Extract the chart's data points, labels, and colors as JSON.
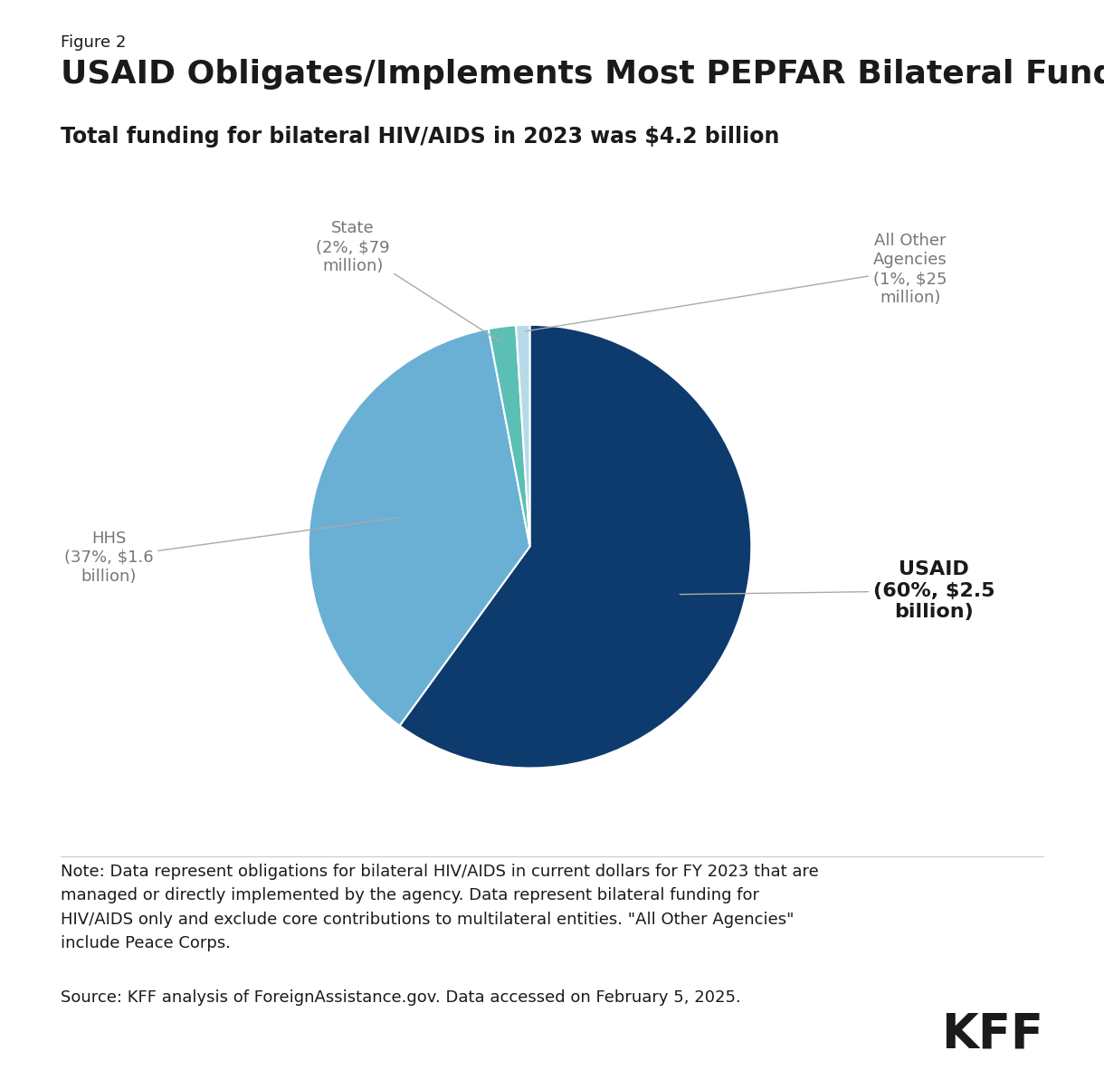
{
  "figure_label": "Figure 2",
  "title": "USAID Obligates/Implements Most PEPFAR Bilateral Funding",
  "subtitle": "Total funding for bilateral HIV/AIDS in 2023 was $4.2 billion",
  "slices": [
    {
      "label": "USAID",
      "value": 60,
      "color": "#0d3b6e",
      "annotation": "USAID\n(60%, $2.5\nbillion)",
      "bold": true
    },
    {
      "label": "HHS",
      "value": 37,
      "color": "#6ab0d4",
      "annotation": "HHS\n(37%, $1.6\nbillion)",
      "bold": false
    },
    {
      "label": "State",
      "value": 2,
      "color": "#5bbfb5",
      "annotation": "State\n(2%, $79\nmillion)",
      "bold": false
    },
    {
      "label": "All Other Agencies",
      "value": 1,
      "color": "#b8d9e8",
      "annotation": "All Other\nAgencies\n(1%, $25\nmillion)",
      "bold": false
    }
  ],
  "note_text": "Note: Data represent obligations for bilateral HIV/AIDS in current dollars for FY 2023 that are\nmanaged or directly implemented by the agency. Data represent bilateral funding for\nHIV/AIDS only and exclude core contributions to multilateral entities. \"All Other Agencies\"\ninclude Peace Corps.",
  "source_text": "Source: KFF analysis of ForeignAssistance.gov. Data accessed on February 5, 2025.",
  "kff_text": "KFF",
  "background_color": "#ffffff",
  "text_color": "#1a1a1a",
  "annotation_color": "#777777",
  "figure_label_fontsize": 13,
  "title_fontsize": 26,
  "subtitle_fontsize": 17,
  "annotation_fontsize": 13,
  "note_fontsize": 13
}
